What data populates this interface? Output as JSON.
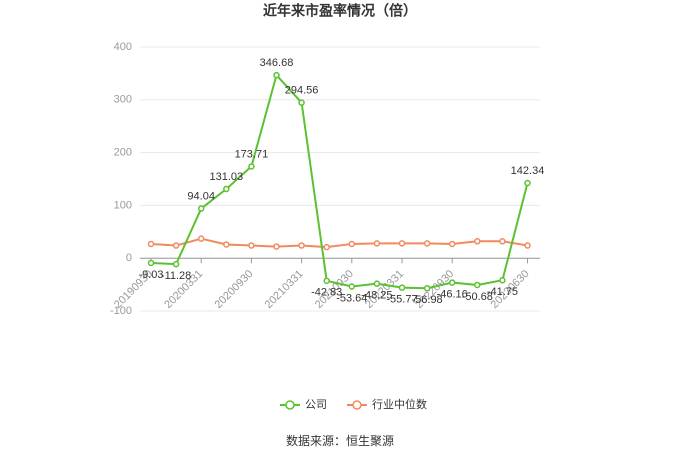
{
  "chart_data": {
    "type": "line",
    "title": "近年来市盈率情况（倍）",
    "categories": [
      "20190930",
      null,
      "20200331",
      null,
      "20200930",
      null,
      "20210331",
      null,
      "20210930",
      null,
      "20220331",
      null,
      "20220930",
      null,
      null,
      "20230630"
    ],
    "series": [
      {
        "name": "公司",
        "color": "#5cc130",
        "values": [
          -9.03,
          -11.28,
          94.04,
          131.03,
          173.71,
          346.68,
          294.56,
          -42.83,
          -53.64,
          -48.25,
          -55.77,
          -56.98,
          -46.16,
          -50.68,
          -41.75,
          142.34
        ]
      },
      {
        "name": "行业中位数",
        "color": "#f2895f",
        "values": [
          27,
          24,
          37,
          26,
          24,
          22,
          24,
          21,
          27,
          28,
          28,
          28,
          27,
          32,
          32,
          24
        ]
      }
    ],
    "ylim": [
      -100,
      400
    ],
    "yticks": [
      -100,
      0,
      100,
      200,
      300,
      400
    ],
    "grid": true,
    "source": "数据来源：恒生聚源"
  }
}
